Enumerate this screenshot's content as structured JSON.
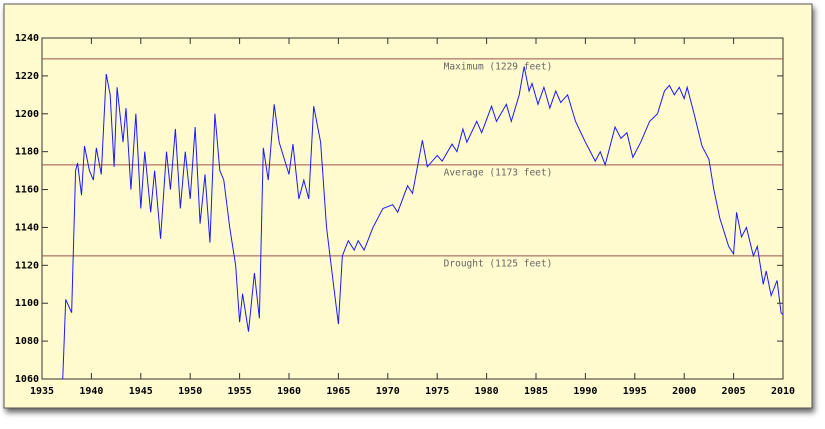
{
  "chart_data": {
    "type": "line",
    "x": [
      1937.1,
      1937.4,
      1938.0,
      1938.4,
      1938.6,
      1939.0,
      1939.3,
      1939.8,
      1940.2,
      1940.5,
      1941.0,
      1941.5,
      1941.9,
      1942.3,
      1942.6,
      1943.2,
      1943.5,
      1944.0,
      1944.5,
      1945.0,
      1945.4,
      1946.0,
      1946.4,
      1947.0,
      1947.6,
      1948.0,
      1948.5,
      1949.0,
      1949.5,
      1950.0,
      1950.5,
      1951.0,
      1951.5,
      1952.0,
      1952.5,
      1953.0,
      1953.4,
      1954.0,
      1954.6,
      1955.0,
      1955.3,
      1955.9,
      1956.5,
      1957.0,
      1957.4,
      1957.9,
      1958.5,
      1959.0,
      1960.0,
      1960.4,
      1961.0,
      1961.5,
      1962.0,
      1962.5,
      1963.2,
      1963.8,
      1964.5,
      1965.0,
      1965.4,
      1966.0,
      1966.6,
      1967.0,
      1967.6,
      1968.5,
      1969.5,
      1970.5,
      1971.0,
      1972.0,
      1972.5,
      1973.5,
      1974.0,
      1975.0,
      1975.5,
      1976.5,
      1977.0,
      1977.6,
      1978.0,
      1979.0,
      1979.5,
      1980.5,
      1981.0,
      1982.0,
      1982.5,
      1983.3,
      1983.8,
      1984.3,
      1984.6,
      1985.2,
      1985.8,
      1986.4,
      1987.0,
      1987.5,
      1988.2,
      1989.0,
      1990.0,
      1991.0,
      1991.5,
      1992.0,
      1993.0,
      1993.6,
      1994.2,
      1994.8,
      1995.6,
      1996.5,
      1997.3,
      1998.0,
      1998.5,
      1999.0,
      1999.5,
      2000.0,
      2000.3,
      2001.0,
      2001.8,
      2002.5,
      2003.0,
      2003.6,
      2004.5,
      2005.0,
      2005.3,
      2005.8,
      2006.3,
      2007.0,
      2007.4,
      2008.0,
      2008.3,
      2008.8,
      2009.4,
      2009.8,
      2010.0
    ],
    "series": [
      {
        "color": "#1a1aff",
        "values": [
          1060,
          1102,
          1095,
          1170,
          1174,
          1157,
          1183,
          1170,
          1165,
          1182,
          1168,
          1221,
          1210,
          1172,
          1214,
          1185,
          1203,
          1160,
          1200,
          1150,
          1180,
          1148,
          1170,
          1134,
          1180,
          1160,
          1192,
          1150,
          1180,
          1155,
          1193,
          1142,
          1168,
          1132,
          1200,
          1170,
          1165,
          1140,
          1120,
          1090,
          1105,
          1085,
          1116,
          1092,
          1182,
          1165,
          1205,
          1185,
          1168,
          1184,
          1155,
          1165,
          1155,
          1204,
          1185,
          1140,
          1110,
          1089,
          1125,
          1133,
          1128,
          1133,
          1128,
          1140,
          1150,
          1152,
          1148,
          1162,
          1158,
          1186,
          1172,
          1178,
          1175,
          1184,
          1180,
          1192,
          1185,
          1196,
          1190,
          1204,
          1196,
          1205,
          1196,
          1210,
          1225,
          1212,
          1216,
          1205,
          1214,
          1203,
          1212,
          1206,
          1210,
          1196,
          1185,
          1175,
          1180,
          1173,
          1193,
          1187,
          1190,
          1177,
          1185,
          1196,
          1200,
          1212,
          1215,
          1210,
          1214,
          1208,
          1214,
          1200,
          1183,
          1176,
          1160,
          1145,
          1130,
          1126,
          1148,
          1135,
          1140,
          1125,
          1130,
          1110,
          1117,
          1104,
          1112,
          1095,
          1094
        ]
      }
    ],
    "reference_lines": [
      {
        "value": 1229,
        "label": "Maximum (1229 feet)"
      },
      {
        "value": 1173,
        "label": "Average (1173 feet)"
      },
      {
        "value": 1125,
        "label": "Drought (1125 feet)"
      }
    ],
    "xlim": [
      1935,
      2010
    ],
    "xticks": [
      1935,
      1940,
      1945,
      1950,
      1955,
      1960,
      1965,
      1970,
      1975,
      1980,
      1985,
      1990,
      1995,
      2000,
      2005,
      2010
    ],
    "ylim": [
      1060,
      1240
    ],
    "yticks": [
      1060,
      1080,
      1100,
      1120,
      1140,
      1160,
      1180,
      1200,
      1220,
      1240
    ]
  }
}
